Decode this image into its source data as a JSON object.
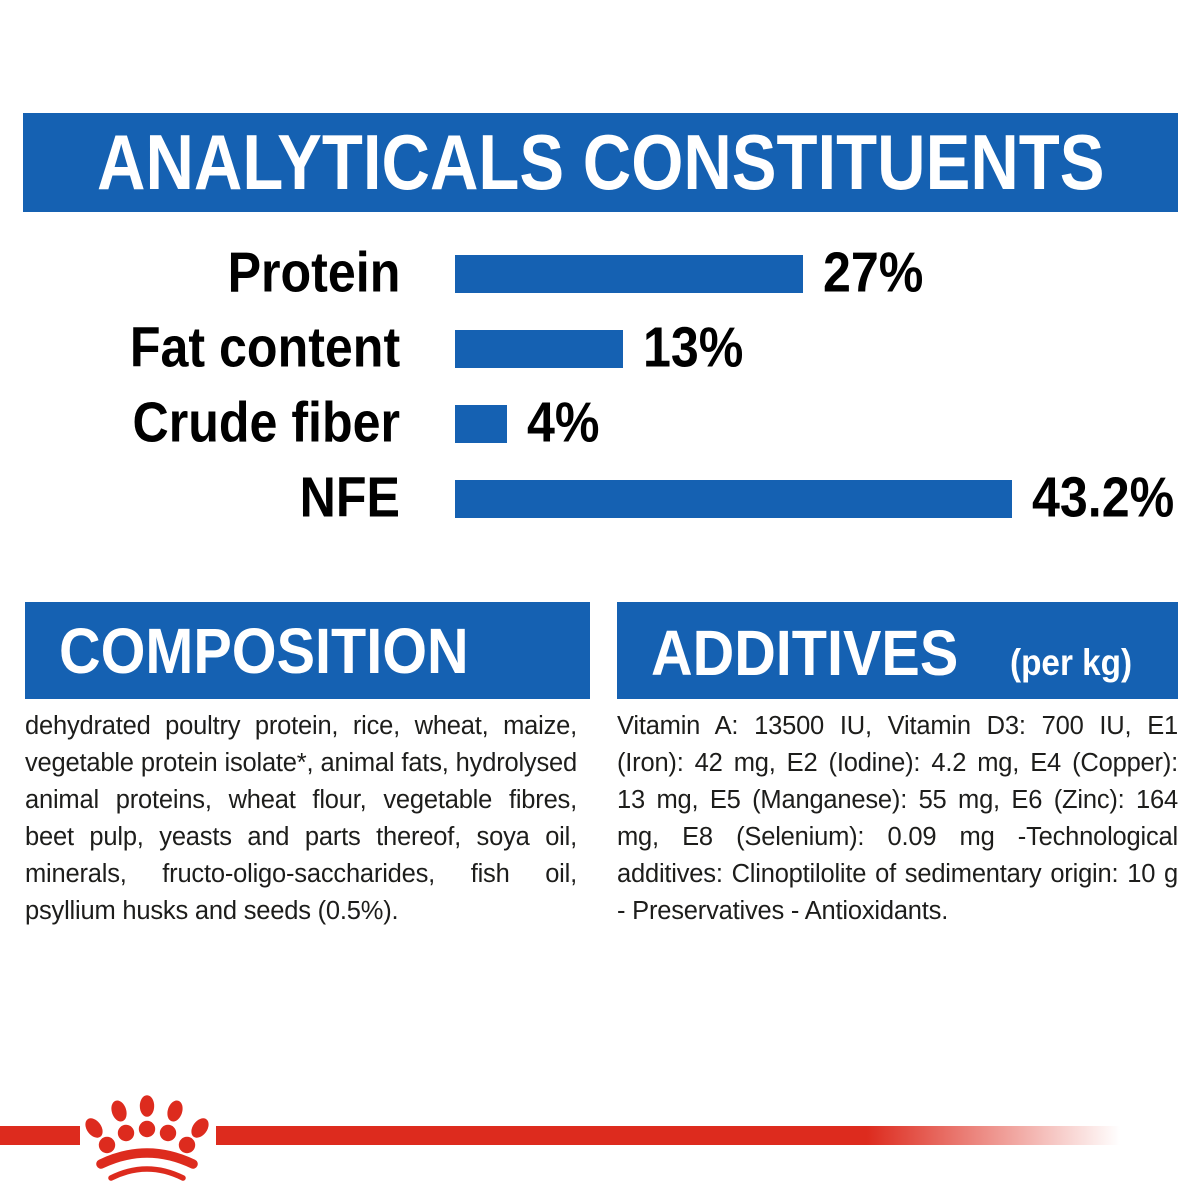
{
  "header": {
    "title": "ANALYTICALS CONSTITUENTS"
  },
  "chart_data": {
    "type": "bar",
    "orientation": "horizontal",
    "title": "ANALYTICALS CONSTITUENTS",
    "categories": [
      "Protein",
      "Fat content",
      "Crude fiber",
      "NFE"
    ],
    "values": [
      27,
      13,
      4,
      43.2
    ],
    "value_labels": [
      "27%",
      "13%",
      "4%",
      "43.2%"
    ],
    "unit": "percent",
    "xlim": [
      0,
      45
    ],
    "grid": false,
    "bar_color": "#1561b2",
    "label_color": "#000000"
  },
  "composition": {
    "title": "COMPOSITION",
    "text": "dehydrated poultry protein, rice, wheat, maize, vegetable protein isolate*, animal fats, hydrolysed animal proteins, wheat flour, vegetable fibres, beet pulp, yeasts and parts thereof, soya oil, minerals, fructo-oligo-saccharides, fish oil, psyllium husks and seeds (0.5%)."
  },
  "additives": {
    "title": "ADDITIVES",
    "unit_note": "(per kg)",
    "text": "Vitamin A: 13500 IU, Vitamin D3: 700 IU, E1 (Iron): 42 mg, E2 (Iodine): 4.2 mg, E4 (Copper): 13 mg, E5 (Manganese): 55 mg, E6 (Zinc): 164 mg, E8 (Selenium): 0.09 mg -Technological additives: Clinoptilolite of sedimentary origin: 10 g - Preservatives - Antioxidants."
  },
  "branding": {
    "logo": "royal-canin-crown",
    "accent_red": "#dd2b1e",
    "accent_blue": "#1561b2"
  }
}
